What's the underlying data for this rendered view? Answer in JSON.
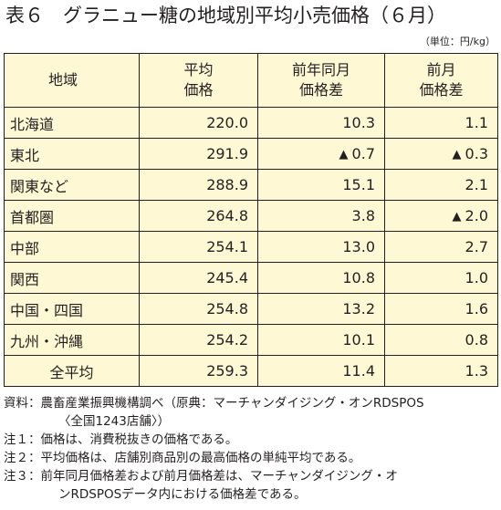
{
  "title": "表６　グラニュー糖の地域別平均小売価格（６月）",
  "unit": "（単位：円/kg）",
  "table": {
    "headers": [
      [
        "地域"
      ],
      [
        "平均",
        "価格"
      ],
      [
        "前年同月",
        "価格差"
      ],
      [
        "前月",
        "価格差"
      ]
    ],
    "rows": [
      {
        "region": "北海道",
        "price": "220.0",
        "yoy": "10.3",
        "yoy_neg": false,
        "mom": "1.1",
        "mom_neg": false
      },
      {
        "region": "東北",
        "price": "291.9",
        "yoy": "0.7",
        "yoy_neg": true,
        "mom": "0.3",
        "mom_neg": true
      },
      {
        "region": "関東など",
        "price": "288.9",
        "yoy": "15.1",
        "yoy_neg": false,
        "mom": "2.1",
        "mom_neg": false
      },
      {
        "region": "首都圏",
        "price": "264.8",
        "yoy": "3.8",
        "yoy_neg": false,
        "mom": "2.0",
        "mom_neg": true
      },
      {
        "region": "中部",
        "price": "254.1",
        "yoy": "13.0",
        "yoy_neg": false,
        "mom": "2.7",
        "mom_neg": false
      },
      {
        "region": "関西",
        "price": "245.4",
        "yoy": "10.8",
        "yoy_neg": false,
        "mom": "1.0",
        "mom_neg": false
      },
      {
        "region": "中国・四国",
        "price": "254.8",
        "yoy": "13.2",
        "yoy_neg": false,
        "mom": "1.6",
        "mom_neg": false
      },
      {
        "region": "九州・沖縄",
        "price": "254.2",
        "yoy": "10.1",
        "yoy_neg": false,
        "mom": "0.8",
        "mom_neg": false
      },
      {
        "region": "全平均",
        "price": "259.3",
        "yoy": "11.4",
        "yoy_neg": false,
        "mom": "1.3",
        "mom_neg": false
      }
    ],
    "negative_marker": "▲"
  },
  "notes": {
    "source_label": "資料：",
    "source_text": "農畜産業振興機構調べ（原典：マーチャンダイジング・オンRDSPOS",
    "source_cont": "〈全国1243店舗〉）",
    "note1_label": "注１：",
    "note1_text": "価格は、消費税抜きの価格である。",
    "note2_label": "注２：",
    "note2_text": "平均価格は、店舗別商品別の最高価格の単純平均である。",
    "note3_label": "注３：",
    "note3_text": "前年同月価格差および前月価格差は、マーチャンダイジング・オ",
    "note3_cont": "ンRDSPOSデータ内における価格差である。"
  },
  "colors": {
    "table_bg": "#fff8d4",
    "text": "#231f20"
  }
}
